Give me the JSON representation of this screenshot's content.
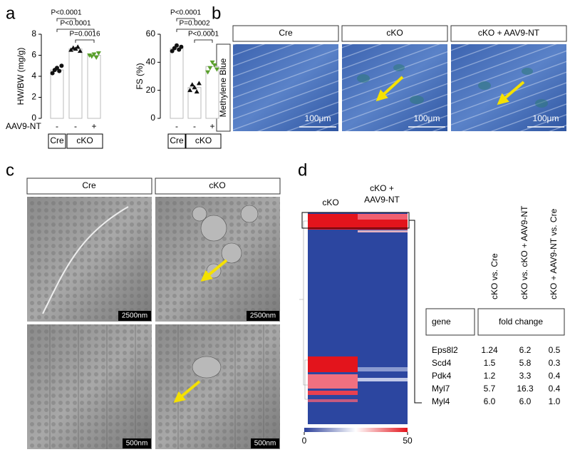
{
  "panel_labels": [
    "a",
    "b",
    "c",
    "d"
  ],
  "chart_data": [
    {
      "type": "bar",
      "ylabel": "HW/BW (mg/g)",
      "row_label": "AAV9-NT",
      "categories": [
        "-",
        "-",
        "+"
      ],
      "groups": [
        "Cre",
        "cKO"
      ],
      "values": [
        4.6,
        6.6,
        6.0
      ],
      "points": [
        [
          4.3,
          4.6,
          4.8,
          4.5,
          5.0
        ],
        [
          6.5,
          6.7,
          6.6,
          6.8,
          6.4
        ],
        [
          6.0,
          5.9,
          6.1,
          5.8,
          6.2
        ]
      ],
      "colors": [
        "#111111",
        "#111111",
        "#5aa02c"
      ],
      "markers": [
        "circle",
        "triangle",
        "triangle-down"
      ],
      "ylim": [
        0,
        8
      ],
      "yticks": [
        0,
        2,
        4,
        6,
        8
      ],
      "annotations": [
        "P<0.0001",
        "P<0.0001",
        "P=0.0016"
      ]
    },
    {
      "type": "bar",
      "ylabel": "FS (%)",
      "categories": [
        "-",
        "-",
        "+"
      ],
      "groups": [
        "Cre",
        "cKO"
      ],
      "values": [
        50,
        22,
        37
      ],
      "points": [
        [
          48,
          50,
          52,
          49,
          51
        ],
        [
          20,
          24,
          22,
          19,
          25
        ],
        [
          33,
          36,
          40,
          38,
          35
        ]
      ],
      "colors": [
        "#111111",
        "#111111",
        "#5aa02c"
      ],
      "markers": [
        "circle",
        "triangle",
        "triangle-down"
      ],
      "ylim": [
        0,
        60
      ],
      "yticks": [
        0,
        20,
        40,
        60
      ],
      "annotations": [
        "P<0.0001",
        "P=0.0002",
        "P<0.0001"
      ]
    }
  ],
  "panel_b": {
    "headers": [
      "Cre",
      "cKO",
      "cKO + AAV9-NT"
    ],
    "stain": "Methylene Blue",
    "scale_bar": "100μm"
  },
  "panel_c": {
    "headers": [
      "Cre",
      "cKO"
    ],
    "scale_bars": [
      "2500nm",
      "500nm"
    ]
  },
  "panel_d": {
    "columns": [
      [
        "cKO"
      ],
      [
        "cKO +",
        "AAV9-NT"
      ]
    ],
    "colorbar_lim": [
      0,
      50
    ],
    "colorbar_ticks": [
      0,
      50
    ],
    "comparisons": [
      "cKO vs. Cre",
      "cKO vs. cKO + AAV9-NT",
      "cKO + AAV9-NT vs. Cre"
    ],
    "table": {
      "header": [
        "gene",
        "fold change"
      ],
      "rows": [
        [
          "Eps8l2",
          "1.24",
          "6.2",
          "0.5"
        ],
        [
          "Scd4",
          "1.5",
          "5.8",
          "0.3"
        ],
        [
          "Pdk4",
          "1.2",
          "3.3",
          "0.4"
        ],
        [
          "Myl7",
          "5.7",
          "16.3",
          "0.4"
        ],
        [
          "Myl4",
          "6.0",
          "6.0",
          "1.0"
        ]
      ]
    }
  }
}
